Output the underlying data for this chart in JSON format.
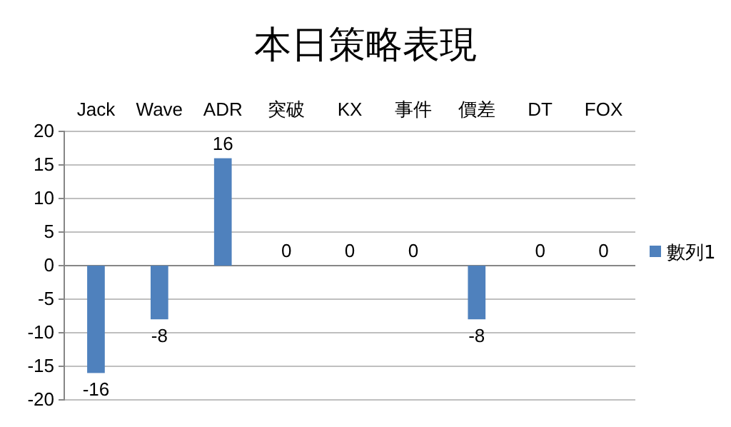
{
  "chart_data": {
    "type": "bar",
    "title": "本日策略表現",
    "categories": [
      "Jack",
      "Wave",
      "ADR",
      "突破",
      "KX",
      "事件",
      "價差",
      "DT",
      "FOX"
    ],
    "series": [
      {
        "name": "數列1",
        "color": "#4f81bd",
        "values": [
          -16,
          -8,
          16,
          0,
          0,
          0,
          -8,
          0,
          0
        ]
      }
    ],
    "ylim": [
      -20,
      20
    ],
    "yticks": [
      -20,
      -15,
      -10,
      -5,
      0,
      5,
      10,
      15,
      20
    ],
    "grid": "y",
    "legend": "right",
    "data_labels": true
  }
}
